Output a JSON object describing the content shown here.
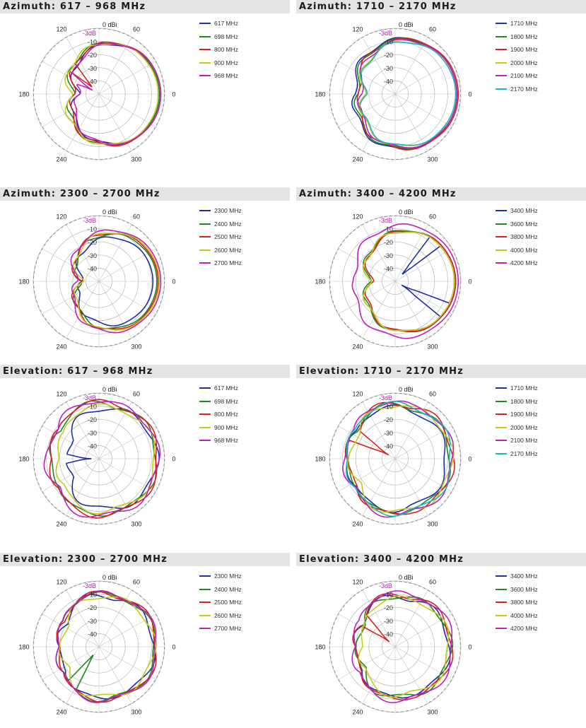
{
  "chart_data": [
    {
      "type": "polar-line",
      "title": "Azimuth: 617 – 968 MHz",
      "ring_labels": [
        "-10",
        "-20",
        "-30",
        "-40"
      ],
      "ref_labels": {
        "zero": "0 dBi",
        "minus3": "-3dB"
      },
      "angle_labels": [
        "0",
        "60",
        "120",
        "180",
        "240",
        "300"
      ],
      "r_lim": [
        -50,
        0
      ],
      "series": [
        {
          "name": "617 MHz",
          "color": "#1f2fa8",
          "shape": "broad",
          "level": -4,
          "back": -34,
          "spikes": []
        },
        {
          "name": "698 MHz",
          "color": "#1d8a1d",
          "shape": "broad",
          "level": -4,
          "back": -30,
          "spikes": []
        },
        {
          "name": "800 MHz",
          "color": "#d91f1f",
          "shape": "broad",
          "level": -3,
          "back": -32,
          "spikes": [
            135
          ]
        },
        {
          "name": "900 MHz",
          "color": "#c8c81a",
          "shape": "broad",
          "level": -5,
          "back": -28,
          "spikes": []
        },
        {
          "name": "968 MHz",
          "color": "#c21ec2",
          "shape": "broad",
          "level": -3,
          "back": -36,
          "spikes": [
            150
          ]
        }
      ]
    },
    {
      "type": "polar-line",
      "title": "Azimuth: 1710 – 2170 MHz",
      "ring_labels": [
        "-10",
        "-20",
        "-30",
        "-40"
      ],
      "ref_labels": {
        "zero": "0 dBi",
        "minus3": "-3dB"
      },
      "angle_labels": [
        "0",
        "60",
        "120",
        "180",
        "240",
        "300"
      ],
      "r_lim": [
        -50,
        0
      ],
      "series": [
        {
          "name": "1710 MHz",
          "color": "#1f2fa8",
          "shape": "broad",
          "level": -3,
          "back": -20,
          "spikes": []
        },
        {
          "name": "1800 MHz",
          "color": "#1d8a1d",
          "shape": "broad",
          "level": -3,
          "back": -22,
          "spikes": []
        },
        {
          "name": "1900 MHz",
          "color": "#d91f1f",
          "shape": "broad",
          "level": -2,
          "back": -24,
          "spikes": []
        },
        {
          "name": "2000 MHz",
          "color": "#c8c81a",
          "shape": "broad",
          "level": -4,
          "back": -26,
          "spikes": []
        },
        {
          "name": "2100 MHz",
          "color": "#c21ec2",
          "shape": "broad",
          "level": -3,
          "back": -25,
          "spikes": []
        },
        {
          "name": "2170 MHz",
          "color": "#18b8c0",
          "shape": "broad",
          "level": -4,
          "back": -27,
          "spikes": []
        }
      ]
    },
    {
      "type": "polar-line",
      "title": "Azimuth: 2300 – 2700 MHz",
      "ring_labels": [
        "-10",
        "-20",
        "-30",
        "-40"
      ],
      "ref_labels": {
        "zero": "0 dBi",
        "minus3": "-3dB"
      },
      "angle_labels": [
        "0",
        "60",
        "120",
        "180",
        "240",
        "300"
      ],
      "r_lim": [
        -50,
        0
      ],
      "series": [
        {
          "name": "2300 MHz",
          "color": "#1f2fa8",
          "shape": "broad",
          "level": -9,
          "back": -38,
          "spikes": []
        },
        {
          "name": "2400 MHz",
          "color": "#1d8a1d",
          "shape": "broad",
          "level": -6,
          "back": -36,
          "spikes": []
        },
        {
          "name": "2500 MHz",
          "color": "#d91f1f",
          "shape": "broad",
          "level": -5,
          "back": -35,
          "spikes": []
        },
        {
          "name": "2600 MHz",
          "color": "#c8c81a",
          "shape": "broad",
          "level": -4,
          "back": -37,
          "spikes": []
        },
        {
          "name": "2700 MHz",
          "color": "#c21ec2",
          "shape": "broad",
          "level": -3,
          "back": -34,
          "spikes": []
        }
      ]
    },
    {
      "type": "polar-line",
      "title": "Azimuth: 3400 – 4200 MHz",
      "ring_labels": [
        "-10",
        "-20",
        "-30",
        "-40"
      ],
      "ref_labels": {
        "zero": "0 dBi",
        "minus3": "-3dB"
      },
      "angle_labels": [
        "0",
        "60",
        "120",
        "180",
        "240",
        "300"
      ],
      "r_lim": [
        -50,
        0
      ],
      "series": [
        {
          "name": "3400 MHz",
          "color": "#1f2fa8",
          "shape": "broad",
          "level": -5,
          "back": -30,
          "spikes": [
            45,
            330
          ]
        },
        {
          "name": "3600 MHz",
          "color": "#1d8a1d",
          "shape": "broad",
          "level": -4,
          "back": -30,
          "spikes": []
        },
        {
          "name": "3800 MHz",
          "color": "#d91f1f",
          "shape": "broad",
          "level": -4,
          "back": -32,
          "spikes": []
        },
        {
          "name": "4000 MHz",
          "color": "#c8c81a",
          "shape": "broad",
          "level": -5,
          "back": -30,
          "spikes": []
        },
        {
          "name": "4200 MHz",
          "color": "#c21ec2",
          "shape": "broad",
          "level": -2,
          "back": -20,
          "spikes": []
        }
      ]
    },
    {
      "type": "polar-line",
      "title": "Elevation: 617 – 968 MHz",
      "ring_labels": [
        "-10",
        "-20",
        "-30",
        "-40"
      ],
      "ref_labels": {
        "zero": "0 dBi",
        "minus3": "-3dB"
      },
      "angle_labels": [
        "0",
        "60",
        "120",
        "180",
        "240",
        "300"
      ],
      "r_lim": [
        -50,
        0
      ],
      "series": [
        {
          "name": "617 MHz",
          "color": "#1f2fa8",
          "shape": "lobed",
          "level": -3,
          "back": -30,
          "spikes": [
            180
          ]
        },
        {
          "name": "698 MHz",
          "color": "#1d8a1d",
          "shape": "lobed",
          "level": -3,
          "back": -15,
          "spikes": []
        },
        {
          "name": "800 MHz",
          "color": "#d91f1f",
          "shape": "lobed",
          "level": -2,
          "back": -14,
          "spikes": []
        },
        {
          "name": "900 MHz",
          "color": "#c8c81a",
          "shape": "lobed",
          "level": -4,
          "back": -20,
          "spikes": []
        },
        {
          "name": "968 MHz",
          "color": "#c21ec2",
          "shape": "lobed",
          "level": -2,
          "back": -12,
          "spikes": []
        }
      ]
    },
    {
      "type": "polar-line",
      "title": "Elevation: 1710 – 2170 MHz",
      "ring_labels": [
        "-10",
        "-20",
        "-30",
        "-40"
      ],
      "ref_labels": {
        "zero": "0 dBi",
        "minus3": "-3dB"
      },
      "angle_labels": [
        "0",
        "60",
        "120",
        "180",
        "240",
        "300"
      ],
      "r_lim": [
        -50,
        0
      ],
      "series": [
        {
          "name": "1710 MHz",
          "color": "#1f2fa8",
          "shape": "lobed",
          "level": -8,
          "back": -14,
          "spikes": []
        },
        {
          "name": "1800 MHz",
          "color": "#1d8a1d",
          "shape": "lobed",
          "level": -5,
          "back": -15,
          "spikes": []
        },
        {
          "name": "1900 MHz",
          "color": "#d91f1f",
          "shape": "lobed",
          "level": -3,
          "back": -16,
          "spikes": [
            150
          ]
        },
        {
          "name": "2000 MHz",
          "color": "#c8c81a",
          "shape": "lobed",
          "level": -4,
          "back": -18,
          "spikes": []
        },
        {
          "name": "2100 MHz",
          "color": "#c21ec2",
          "shape": "lobed",
          "level": -3,
          "back": -13,
          "spikes": []
        },
        {
          "name": "2170 MHz",
          "color": "#18b8c0",
          "shape": "lobed",
          "level": -4,
          "back": -14,
          "spikes": []
        }
      ]
    },
    {
      "type": "polar-line",
      "title": "Elevation: 2300 – 2700 MHz",
      "ring_labels": [
        "-10",
        "-20",
        "-30",
        "-40"
      ],
      "ref_labels": {
        "zero": "0 dBi",
        "minus3": "-3dB"
      },
      "angle_labels": [
        "0",
        "60",
        "120",
        "180",
        "240",
        "300"
      ],
      "r_lim": [
        -50,
        0
      ],
      "series": [
        {
          "name": "2300 MHz",
          "color": "#1f2fa8",
          "shape": "lobed",
          "level": -5,
          "back": -22,
          "spikes": []
        },
        {
          "name": "2400 MHz",
          "color": "#1d8a1d",
          "shape": "lobed",
          "level": -4,
          "back": -20,
          "spikes": [
            235
          ]
        },
        {
          "name": "2500 MHz",
          "color": "#d91f1f",
          "shape": "lobed",
          "level": -3,
          "back": -21,
          "spikes": []
        },
        {
          "name": "2600 MHz",
          "color": "#c8c81a",
          "shape": "lobed",
          "level": -5,
          "back": -24,
          "spikes": []
        },
        {
          "name": "2700 MHz",
          "color": "#c21ec2",
          "shape": "lobed",
          "level": -3,
          "back": -20,
          "spikes": []
        }
      ]
    },
    {
      "type": "polar-line",
      "title": "Elevation: 3400 – 4200 MHz",
      "ring_labels": [
        "-10",
        "-20",
        "-30",
        "-40"
      ],
      "ref_labels": {
        "zero": "0 dBi",
        "minus3": "-3dB"
      },
      "angle_labels": [
        "0",
        "60",
        "120",
        "180",
        "240",
        "300"
      ],
      "r_lim": [
        -50,
        0
      ],
      "series": [
        {
          "name": "3400 MHz",
          "color": "#1f2fa8",
          "shape": "lobed",
          "level": -6,
          "back": -22,
          "spikes": []
        },
        {
          "name": "3600 MHz",
          "color": "#1d8a1d",
          "shape": "lobed",
          "level": -5,
          "back": -24,
          "spikes": []
        },
        {
          "name": "3800 MHz",
          "color": "#d91f1f",
          "shape": "lobed",
          "level": -4,
          "back": -22,
          "spikes": [
            140
          ]
        },
        {
          "name": "4000 MHz",
          "color": "#c8c81a",
          "shape": "lobed",
          "level": -6,
          "back": -26,
          "spikes": []
        },
        {
          "name": "4200 MHz",
          "color": "#c21ec2",
          "shape": "lobed",
          "level": -3,
          "back": -20,
          "spikes": []
        }
      ]
    }
  ]
}
